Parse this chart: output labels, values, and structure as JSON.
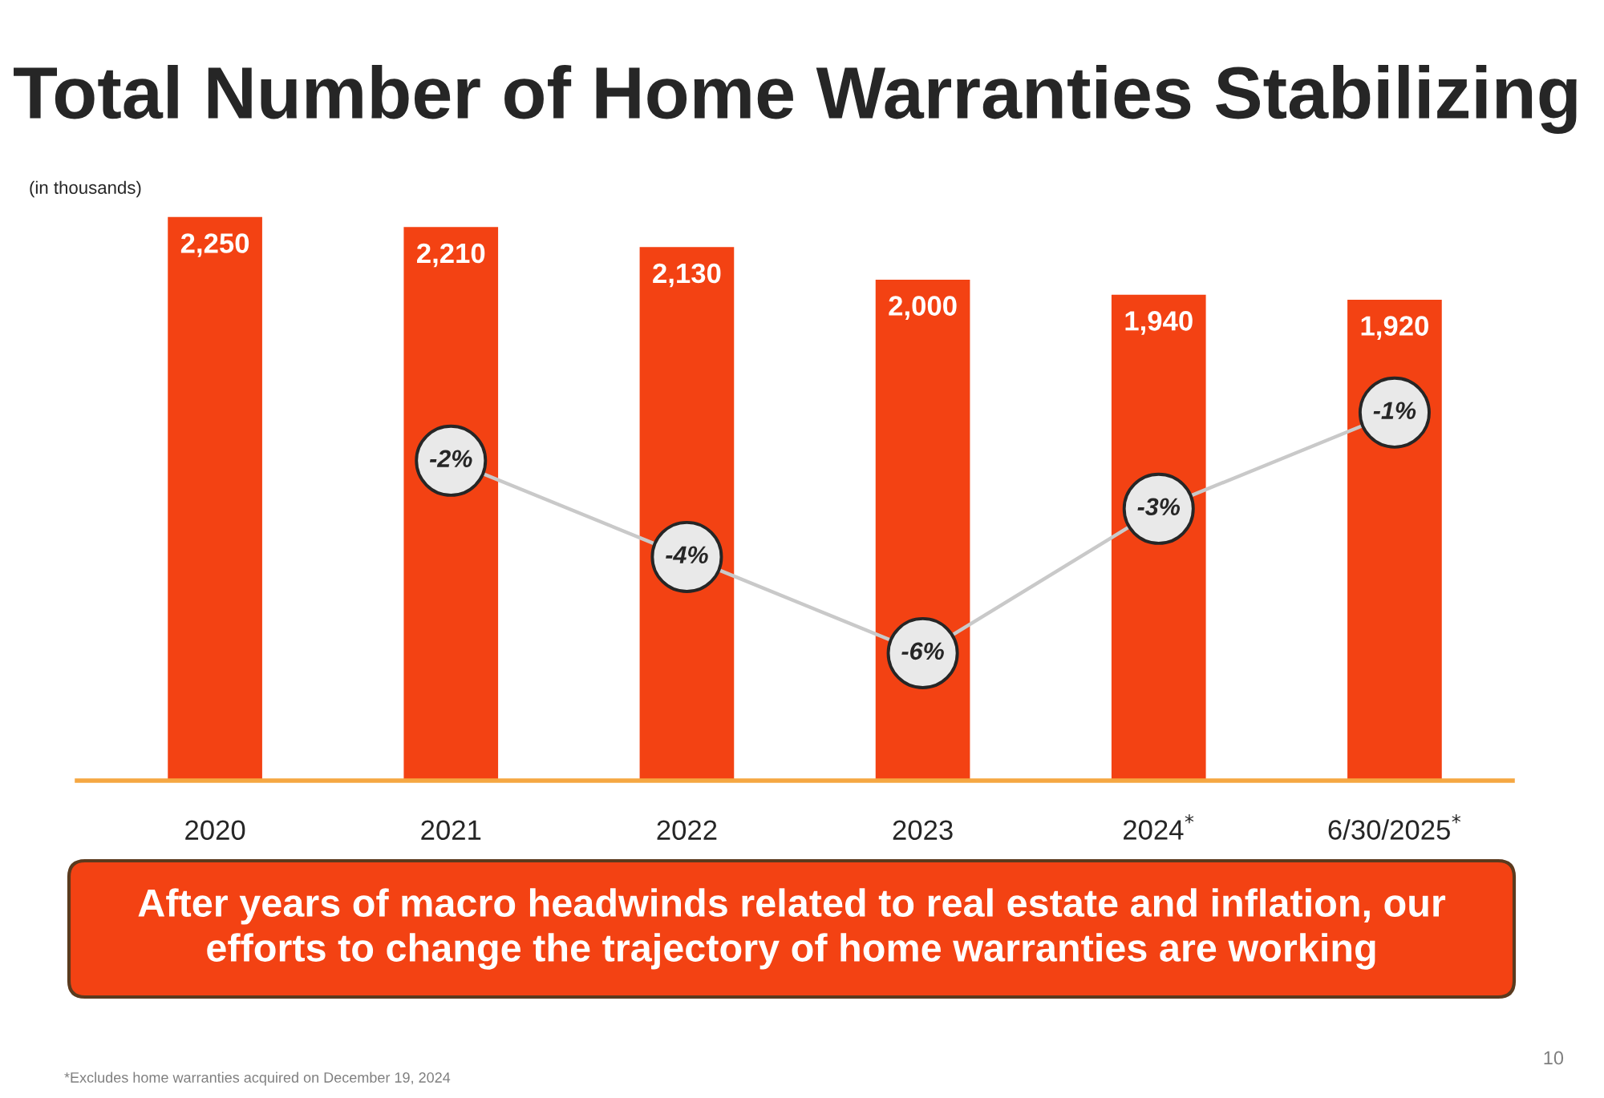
{
  "chart_data": {
    "type": "bar",
    "title": "Total Number of Home Warranties Stabilizing",
    "subtitle": "(in thousands)",
    "categories": [
      "2020",
      "2021",
      "2022",
      "2023",
      "2024$^{*}$",
      "6/30/2025$^{*}$"
    ],
    "series": [
      {
        "color": "#f34213",
        "values": [
          2250,
          2210,
          2130,
          2000,
          1940,
          1920
        ],
        "value_labels": [
          "2,250",
          "2,210",
          "2,130",
          "2,000",
          "1,940",
          "1,920"
        ]
      },
      {
        "type": "line",
        "axis": "y2",
        "color": "#c9c9c9",
        "marker": "circle",
        "values": [
          null,
          -2,
          -4,
          -6,
          -3,
          -1
        ],
        "value_labels": [
          null,
          "-2%",
          "-4%",
          "-6%",
          "-3%",
          "-1%"
        ]
      }
    ],
    "tick_labels": "x",
    "annotations": [
      "After years of macro headwinds related to real estate and inflation, our efforts to change the trajectory of home warranties are working",
      "*Excludes home warranties acquired on December 19, 2024",
      "10"
    ]
  }
}
